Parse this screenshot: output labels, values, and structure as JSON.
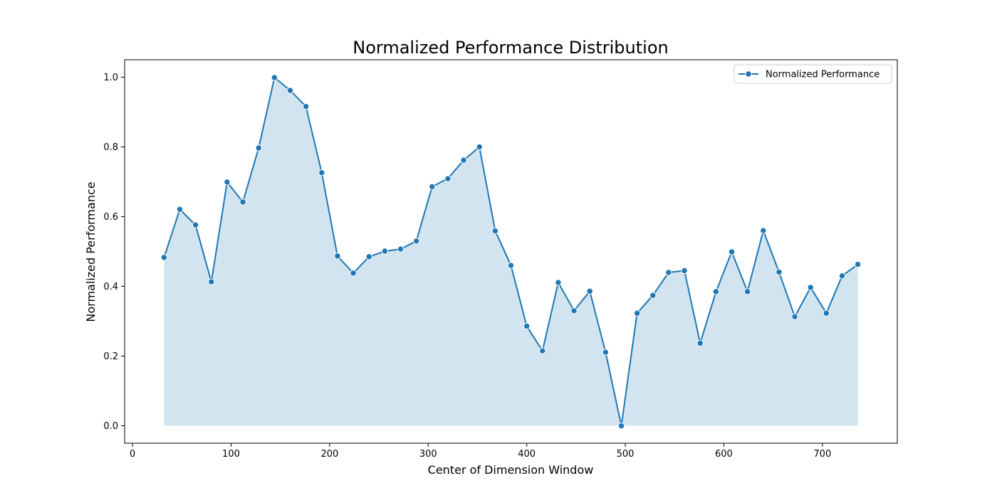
{
  "chart_data": {
    "type": "area",
    "title": "Normalized Performance Distribution",
    "xlabel": "Center of Dimension Window",
    "ylabel": "Normalized Performance",
    "xlim": [
      -8,
      776
    ],
    "ylim": [
      -0.05,
      1.05
    ],
    "x_ticks": [
      0,
      100,
      200,
      300,
      400,
      500,
      600,
      700
    ],
    "x_tick_labels": [
      "0",
      "100",
      "200",
      "300",
      "400",
      "500",
      "600",
      "700"
    ],
    "y_ticks": [
      0.0,
      0.2,
      0.4,
      0.6,
      0.8,
      1.0
    ],
    "y_tick_labels": [
      "0.0",
      "0.2",
      "0.4",
      "0.6",
      "0.8",
      "1.0"
    ],
    "grid": false,
    "legend": {
      "position": "top-right",
      "entries": [
        "Normalized Performance"
      ]
    },
    "series": [
      {
        "name": "Normalized Performance",
        "color": "#1f77b4",
        "fill_color": "#1f77b4",
        "fill_opacity": 0.2,
        "marker": "circle",
        "x": [
          32,
          48,
          64,
          80,
          96,
          112,
          128,
          144,
          160,
          176,
          192,
          208,
          224,
          240,
          256,
          272,
          288,
          304,
          320,
          336,
          352,
          368,
          384,
          400,
          416,
          432,
          448,
          464,
          480,
          496,
          512,
          528,
          544,
          560,
          576,
          592,
          608,
          624,
          640,
          656,
          672,
          688,
          704,
          720,
          736
        ],
        "values": [
          0.483,
          0.621,
          0.576,
          0.413,
          0.699,
          0.642,
          0.797,
          0.999,
          0.962,
          0.916,
          0.726,
          0.487,
          0.438,
          0.485,
          0.501,
          0.507,
          0.53,
          0.686,
          0.709,
          0.762,
          0.8,
          0.559,
          0.46,
          0.286,
          0.215,
          0.411,
          0.33,
          0.386,
          0.211,
          0.0,
          0.323,
          0.374,
          0.44,
          0.445,
          0.237,
          0.385,
          0.499,
          0.385,
          0.56,
          0.441,
          0.313,
          0.397,
          0.323,
          0.43,
          0.463
        ]
      }
    ]
  }
}
